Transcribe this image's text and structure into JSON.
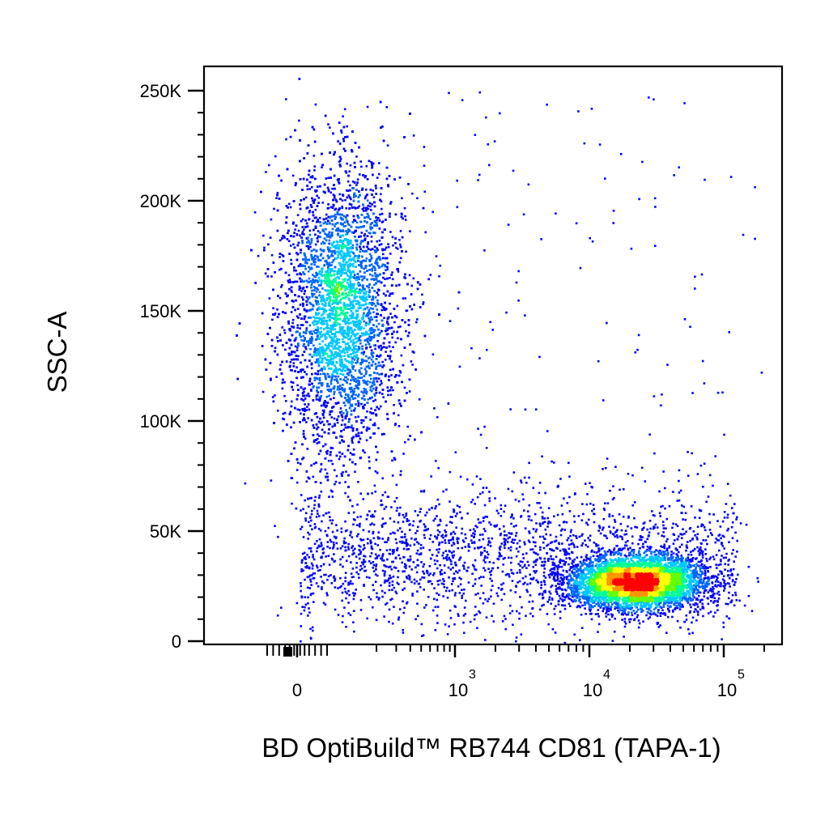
{
  "chart_data": {
    "type": "scatter",
    "subtype": "flow-cytometry-density-dot-plot",
    "xlabel": "BD OptiBuild™ RB744 CD81 (TAPA-1)",
    "ylabel": "SSC-A",
    "x_scale": "biexponential",
    "y_scale": "linear",
    "xlim": [
      -130,
      180000
    ],
    "ylim": [
      -3000,
      262144
    ],
    "x_ticks": [
      {
        "value": 0,
        "label": "0"
      },
      {
        "value": 1000,
        "label": "10",
        "exponent": "3"
      },
      {
        "value": 10000,
        "label": "10",
        "exponent": "4"
      },
      {
        "value": 100000,
        "label": "10",
        "exponent": "5"
      }
    ],
    "y_ticks": [
      {
        "value": 0,
        "label": "0"
      },
      {
        "value": 50000,
        "label": "50K"
      },
      {
        "value": 100000,
        "label": "100K"
      },
      {
        "value": 150000,
        "label": "150K"
      },
      {
        "value": 200000,
        "label": "200K"
      },
      {
        "value": 250000,
        "label": "250K"
      }
    ],
    "grid": false,
    "legend": "none",
    "color_map": [
      "#0000ff",
      "#00c8ff",
      "#00ff66",
      "#ffff00",
      "#ff0000"
    ],
    "populations": [
      {
        "name": "",
        "share": 0.53,
        "center": [
          60,
          150000
        ],
        "spread": [
          70,
          32000
        ],
        "peak_density": "yellow-orange"
      },
      {
        "name": "",
        "share": 0.32,
        "center": [
          22000,
          27000
        ],
        "spread_log10": [
          0.25,
          6000
        ],
        "peak_density": "red"
      },
      {
        "name": "",
        "share": 0.15,
        "x_range": [
          50,
          60000
        ],
        "center_y": 45000,
        "spread_y": 15000,
        "peak_density": "blue"
      }
    ]
  }
}
